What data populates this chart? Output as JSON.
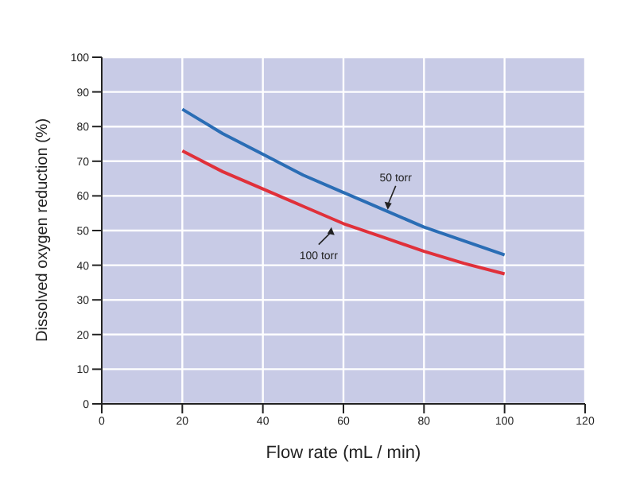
{
  "chart_data": {
    "type": "line",
    "xlabel": "Flow rate (mL / min)",
    "ylabel": "Dissolved oxygen reduction (%)",
    "x": [
      20,
      30,
      40,
      50,
      60,
      70,
      80,
      90,
      100
    ],
    "series": [
      {
        "color": "#2a6db5",
        "values": [
          85,
          78,
          72,
          66,
          61,
          56,
          51,
          47,
          43
        ]
      },
      {
        "color": "#e0303a",
        "values": [
          73,
          67,
          62,
          57,
          52,
          48,
          44,
          40.5,
          37.5
        ]
      }
    ],
    "xlim": [
      0,
      120
    ],
    "xticks": [
      0,
      20,
      40,
      60,
      80,
      100,
      120
    ],
    "ylim": [
      0,
      100
    ],
    "yticks": [
      0,
      10,
      20,
      30,
      40,
      50,
      60,
      70,
      80,
      90,
      100
    ],
    "grid": true,
    "marker": "none",
    "line_style": "solid",
    "annotations": [
      {
        "text": "50 torr",
        "x": 71,
        "y": 56
      },
      {
        "text": "100 torr",
        "x": 57,
        "y": 51
      }
    ]
  }
}
